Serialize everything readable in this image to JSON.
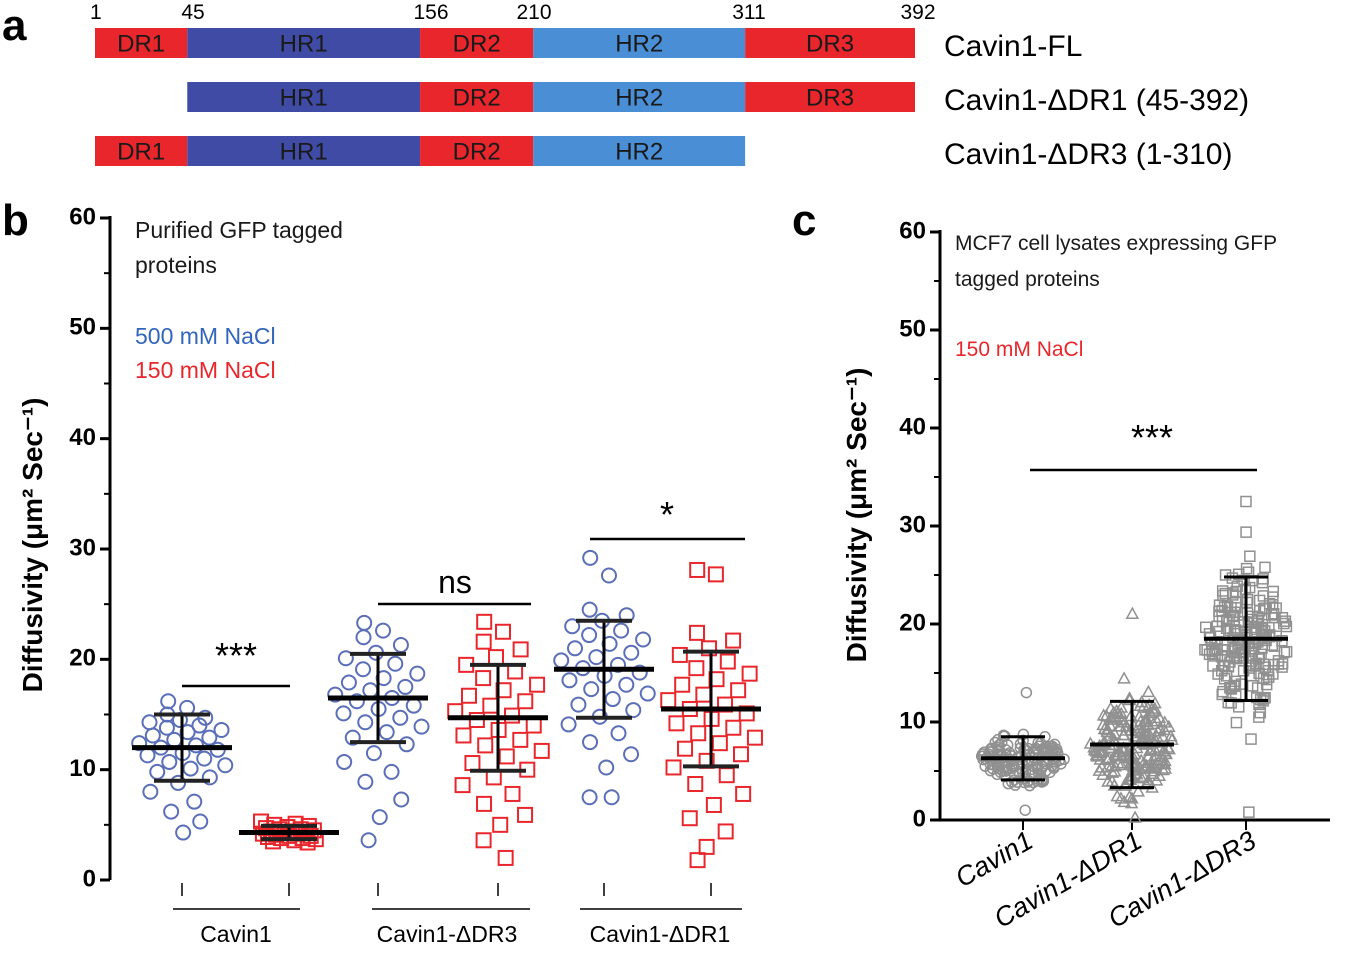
{
  "figure": {
    "panel_letters": [
      "a",
      "b",
      "c"
    ]
  },
  "panel_a": {
    "positions": [
      "1",
      "45",
      "156",
      "210",
      "311",
      "392"
    ],
    "constructs": [
      {
        "name": "Cavin1-FL",
        "domains": [
          {
            "label": "DR1",
            "start": 1,
            "end": 45,
            "color": "#e8262b"
          },
          {
            "label": "HR1",
            "start": 45,
            "end": 156,
            "color": "#3f4ba4"
          },
          {
            "label": "DR2",
            "start": 156,
            "end": 210,
            "color": "#e8262b"
          },
          {
            "label": "HR2",
            "start": 210,
            "end": 311,
            "color": "#4a8fd6"
          },
          {
            "label": "DR3",
            "start": 311,
            "end": 392,
            "color": "#e8262b"
          }
        ]
      },
      {
        "name": "Cavin1-ΔDR1 (45-392)",
        "domains": [
          {
            "label": "HR1",
            "start": 45,
            "end": 156,
            "color": "#3f4ba4"
          },
          {
            "label": "DR2",
            "start": 156,
            "end": 210,
            "color": "#e8262b"
          },
          {
            "label": "HR2",
            "start": 210,
            "end": 311,
            "color": "#4a8fd6"
          },
          {
            "label": "DR3",
            "start": 311,
            "end": 392,
            "color": "#e8262b"
          }
        ]
      },
      {
        "name": "Cavin1-ΔDR3 (1-310)",
        "domains": [
          {
            "label": "DR1",
            "start": 1,
            "end": 45,
            "color": "#e8262b"
          },
          {
            "label": "HR1",
            "start": 45,
            "end": 156,
            "color": "#3f4ba4"
          },
          {
            "label": "DR2",
            "start": 156,
            "end": 210,
            "color": "#e8262b"
          },
          {
            "label": "HR2",
            "start": 210,
            "end": 311,
            "color": "#4a8fd6"
          }
        ]
      }
    ]
  },
  "panel_b": {
    "ylabel": "Diffusivity (μm² Sec⁻¹)",
    "note_lines": [
      "Purified GFP tagged",
      "proteins"
    ],
    "legend": [
      {
        "label": "500 mM NaCl",
        "color": "#3366bb"
      },
      {
        "label": "150 mM NaCl",
        "color": "#e8262b"
      }
    ],
    "groups": [
      "Cavin1",
      "Cavin1-ΔDR3",
      "Cavin1-ΔDR1"
    ],
    "significance": [
      "***",
      "ns",
      "*"
    ]
  },
  "panel_c": {
    "ylabel": "Diffusivity (μm² Sec⁻¹)",
    "note_lines": [
      "MCF7 cell lysates expressing GFP",
      "tagged proteins"
    ],
    "condition": {
      "label": "150 mM NaCl",
      "color": "#e8262b"
    },
    "significance": "***"
  },
  "chart_data": [
    {
      "type": "scatter",
      "title": "Purified GFP tagged proteins",
      "ylabel": "Diffusivity (μm² Sec⁻¹)",
      "ylim": [
        0,
        60
      ],
      "yticks": [
        0,
        10,
        20,
        30,
        40,
        50,
        60
      ],
      "series": [
        {
          "name": "Cavin1 500 mM NaCl",
          "group": "Cavin1",
          "salt": "500 mM NaCl",
          "color": "#5a6fb8",
          "marker": "circle",
          "mean": 12.0,
          "sd": 3.0,
          "values": [
            16.2,
            15.6,
            15.0,
            14.7,
            14.5,
            14.3,
            14.0,
            13.8,
            13.6,
            13.4,
            13.1,
            12.9,
            12.7,
            12.4,
            12.2,
            12.0,
            11.8,
            11.5,
            11.3,
            11.0,
            10.7,
            10.4,
            10.1,
            9.8,
            9.3,
            8.8,
            8.0,
            7.1,
            6.2,
            5.3,
            4.3
          ]
        },
        {
          "name": "Cavin1 150 mM NaCl",
          "group": "Cavin1",
          "salt": "150 mM NaCl",
          "color": "#e8262b",
          "marker": "square",
          "mean": 4.3,
          "sd": 0.6,
          "values": [
            5.3,
            5.1,
            5.0,
            4.9,
            4.8,
            4.7,
            4.6,
            4.6,
            4.5,
            4.4,
            4.4,
            4.3,
            4.3,
            4.2,
            4.2,
            4.1,
            4.0,
            4.0,
            3.9,
            3.8,
            3.8,
            3.7,
            3.6,
            3.5,
            3.4
          ]
        },
        {
          "name": "Cavin1-ΔDR3 500 mM NaCl",
          "group": "Cavin1-ΔDR3",
          "salt": "500 mM NaCl",
          "color": "#5a6fb8",
          "marker": "circle",
          "mean": 16.5,
          "sd": 4.0,
          "values": [
            23.3,
            22.6,
            22.0,
            21.3,
            20.6,
            20.1,
            19.6,
            19.1,
            18.7,
            18.3,
            17.9,
            17.5,
            17.2,
            16.8,
            16.5,
            16.2,
            15.8,
            15.5,
            15.1,
            14.7,
            14.3,
            13.9,
            13.4,
            12.9,
            12.3,
            11.5,
            10.7,
            9.8,
            8.9,
            7.3,
            5.7,
            3.6
          ]
        },
        {
          "name": "Cavin1-ΔDR3 150 mM NaCl",
          "group": "Cavin1-ΔDR3",
          "salt": "150 mM NaCl",
          "color": "#e8262b",
          "marker": "square",
          "mean": 14.7,
          "sd": 4.8,
          "values": [
            23.4,
            22.5,
            21.6,
            20.9,
            20.2,
            19.5,
            18.9,
            18.3,
            17.7,
            17.2,
            16.7,
            16.2,
            15.8,
            15.3,
            14.9,
            14.5,
            14.0,
            13.6,
            13.1,
            12.7,
            12.2,
            11.7,
            11.2,
            10.6,
            10.0,
            9.3,
            8.6,
            7.8,
            6.9,
            5.9,
            5.0,
            3.6,
            2.0
          ]
        },
        {
          "name": "Cavin1-ΔDR1 500 mM NaCl",
          "group": "Cavin1-ΔDR1",
          "salt": "500 mM NaCl",
          "color": "#5a6fb8",
          "marker": "circle",
          "mean": 19.1,
          "sd": 4.4,
          "values": [
            29.2,
            27.6,
            24.5,
            24.0,
            23.5,
            23.0,
            22.6,
            22.2,
            21.8,
            21.4,
            21.0,
            20.6,
            20.2,
            19.9,
            19.5,
            19.2,
            18.8,
            18.5,
            18.1,
            17.7,
            17.3,
            16.9,
            16.4,
            15.9,
            15.4,
            14.8,
            14.1,
            13.3,
            12.5,
            11.4,
            10.2,
            7.5,
            7.5
          ]
        },
        {
          "name": "Cavin1-ΔDR1 150 mM NaCl",
          "group": "Cavin1-ΔDR1",
          "salt": "150 mM NaCl",
          "color": "#e8262b",
          "marker": "square",
          "mean": 15.5,
          "sd": 5.2,
          "values": [
            28.1,
            27.7,
            22.4,
            21.7,
            21.0,
            20.4,
            19.8,
            19.2,
            18.7,
            18.2,
            17.7,
            17.2,
            16.8,
            16.3,
            15.9,
            15.5,
            15.1,
            14.6,
            14.2,
            13.8,
            13.3,
            12.9,
            12.4,
            11.9,
            11.4,
            10.8,
            10.2,
            9.5,
            8.7,
            7.8,
            6.8,
            5.6,
            4.4,
            3.0,
            1.8
          ]
        }
      ]
    },
    {
      "type": "scatter",
      "title": "MCF7 cell lysates expressing GFP tagged proteins",
      "ylabel": "Diffusivity (μm² Sec⁻¹)",
      "ylim": [
        0,
        60
      ],
      "yticks": [
        0,
        10,
        20,
        30,
        40,
        50,
        60
      ],
      "categories": [
        "Cavin1",
        "Cavin1-ΔDR1",
        "Cavin1-ΔDR3"
      ],
      "series": [
        {
          "name": "Cavin1",
          "color": "#909090",
          "marker": "circle",
          "mean": 6.3,
          "sd": 2.2,
          "n": 150,
          "min": 1.0,
          "max": 13.0
        },
        {
          "name": "Cavin1-ΔDR1",
          "color": "#909090",
          "marker": "triangle",
          "mean": 7.7,
          "sd": 4.4,
          "n": 200,
          "min": 0.2,
          "max": 21.0
        },
        {
          "name": "Cavin1-ΔDR3",
          "color": "#909090",
          "marker": "square",
          "mean": 18.5,
          "sd": 6.3,
          "n": 200,
          "min": 0.8,
          "max": 32.5
        }
      ]
    }
  ]
}
